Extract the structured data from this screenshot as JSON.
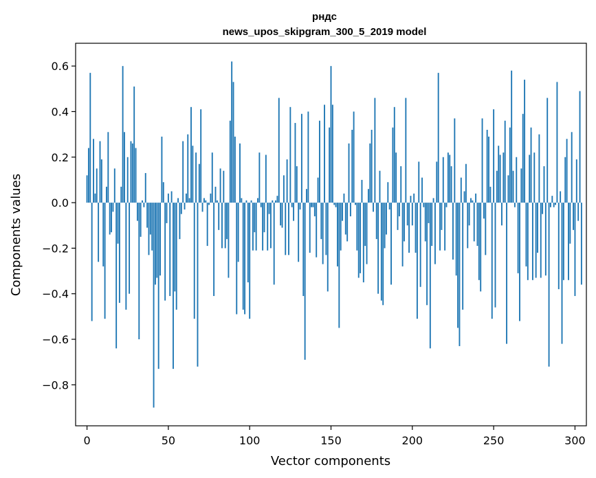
{
  "chart_data": {
    "type": "bar",
    "title": "рндс",
    "subtitle": "news_upos_skipgram_300_5_2019 model",
    "xlabel": "Vector components",
    "ylabel": "Components values",
    "xlim": [
      -7,
      307
    ],
    "ylim": [
      -0.98,
      0.7
    ],
    "xticks": [
      0,
      50,
      100,
      150,
      200,
      250,
      300
    ],
    "yticks": [
      -0.8,
      -0.6,
      -0.4,
      -0.2,
      0.0,
      0.2,
      0.4,
      0.6
    ],
    "ytick_labels": [
      "−0.8",
      "−0.6",
      "−0.4",
      "−0.2",
      "0.0",
      "0.2",
      "0.4",
      "0.6"
    ],
    "bar_color": "#1f77b4",
    "values": [
      0.12,
      0.24,
      0.57,
      -0.52,
      0.28,
      0.04,
      0.15,
      -0.26,
      0.27,
      0.19,
      -0.28,
      -0.51,
      0.07,
      0.31,
      -0.14,
      -0.13,
      -0.04,
      0.15,
      -0.64,
      -0.18,
      -0.44,
      0.07,
      0.6,
      0.31,
      -0.47,
      0.2,
      -0.4,
      0.27,
      0.26,
      0.51,
      0.24,
      -0.08,
      -0.6,
      -0.15,
      0.01,
      -0.02,
      0.13,
      -0.11,
      -0.23,
      -0.14,
      -0.21,
      -0.9,
      -0.36,
      -0.33,
      -0.73,
      -0.32,
      0.29,
      0.09,
      -0.43,
      -0.09,
      0.04,
      -0.41,
      0.05,
      -0.73,
      -0.39,
      -0.47,
      0.02,
      -0.16,
      -0.05,
      0.27,
      -0.03,
      0.04,
      0.3,
      0.02,
      0.42,
      0.25,
      -0.51,
      0.22,
      -0.72,
      0.17,
      0.41,
      -0.04,
      0.02,
      0.01,
      -0.19,
      -0.01,
      0.04,
      0.22,
      -0.41,
      0.07,
      0.01,
      -0.12,
      0.15,
      -0.2,
      0.14,
      -0.2,
      -0.16,
      -0.33,
      0.36,
      0.62,
      0.53,
      0.29,
      -0.49,
      -0.26,
      0.26,
      0.02,
      -0.47,
      -0.49,
      0.01,
      -0.35,
      -0.51,
      0.01,
      -0.21,
      -0.13,
      -0.21,
      0.02,
      0.22,
      -0.02,
      -0.21,
      -0.13,
      0.21,
      -0.21,
      -0.05,
      -0.2,
      0.01,
      -0.36,
      0.01,
      0.03,
      0.46,
      -0.1,
      -0.11,
      0.12,
      -0.23,
      0.19,
      -0.23,
      0.42,
      -0.02,
      -0.08,
      0.35,
      0.16,
      -0.26,
      -0.03,
      0.39,
      -0.41,
      -0.69,
      0.06,
      0.4,
      -0.22,
      -0.02,
      -0.02,
      -0.06,
      -0.24,
      0.11,
      0.36,
      -0.16,
      -0.27,
      0.43,
      -0.23,
      -0.39,
      0.33,
      0.6,
      0.43,
      -0.01,
      -0.02,
      -0.28,
      -0.55,
      -0.21,
      -0.08,
      0.04,
      -0.14,
      -0.17,
      0.26,
      -0.06,
      0.32,
      0.4,
      -0.01,
      -0.21,
      -0.33,
      -0.31,
      0.1,
      -0.35,
      -0.19,
      -0.27,
      0.06,
      0.26,
      0.32,
      -0.04,
      0.46,
      -0.16,
      -0.4,
      0.14,
      -0.43,
      -0.45,
      -0.2,
      -0.14,
      0.09,
      -0.03,
      -0.36,
      0.33,
      0.42,
      0.22,
      -0.12,
      -0.06,
      0.16,
      -0.28,
      -0.17,
      0.46,
      -0.1,
      -0.22,
      0.03,
      -0.1,
      0.04,
      -0.22,
      -0.51,
      0.18,
      -0.37,
      0.11,
      -0.02,
      -0.17,
      -0.45,
      -0.09,
      -0.64,
      -0.19,
      0.02,
      -0.27,
      0.18,
      0.57,
      -0.21,
      -0.12,
      0.2,
      -0.21,
      -0.02,
      0.22,
      0.21,
      0.16,
      -0.25,
      0.37,
      -0.32,
      -0.55,
      -0.63,
      0.11,
      -0.47,
      0.05,
      0.17,
      -0.2,
      -0.1,
      0.02,
      0.01,
      -0.17,
      0.04,
      -0.19,
      -0.34,
      -0.39,
      0.37,
      -0.07,
      -0.23,
      0.32,
      0.29,
      0.07,
      -0.51,
      0.41,
      -0.46,
      0.14,
      0.25,
      0.21,
      -0.1,
      0.22,
      0.36,
      -0.62,
      0.12,
      0.33,
      0.58,
      0.14,
      -0.02,
      0.2,
      -0.31,
      -0.52,
      0.15,
      0.39,
      0.54,
      -0.28,
      -0.34,
      0.21,
      0.33,
      -0.34,
      0.22,
      -0.33,
      -0.22,
      0.3,
      -0.33,
      -0.05,
      0.16,
      -0.32,
      0.46,
      -0.72,
      -0.02,
      0.03,
      -0.02,
      -0.01,
      0.53,
      -0.38,
      0.05,
      -0.62,
      -0.34,
      0.2,
      0.28,
      -0.34,
      -0.18,
      0.31,
      -0.12,
      -0.41,
      0.19,
      -0.08,
      0.49,
      -0.36
    ]
  }
}
